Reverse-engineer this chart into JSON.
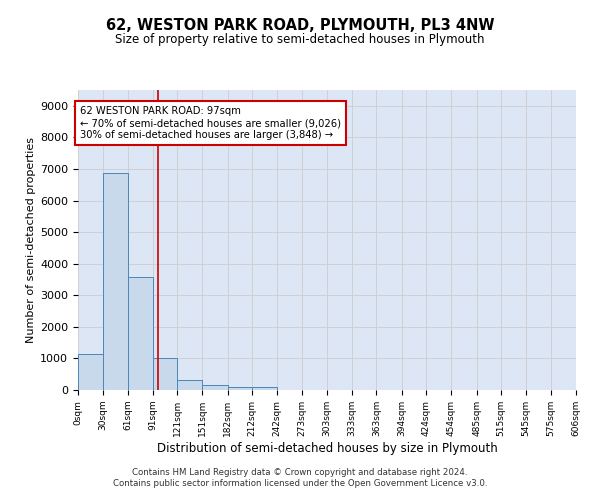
{
  "title": "62, WESTON PARK ROAD, PLYMOUTH, PL3 4NW",
  "subtitle": "Size of property relative to semi-detached houses in Plymouth",
  "xlabel": "Distribution of semi-detached houses by size in Plymouth",
  "ylabel": "Number of semi-detached properties",
  "footer_line1": "Contains HM Land Registry data © Crown copyright and database right 2024.",
  "footer_line2": "Contains public sector information licensed under the Open Government Licence v3.0.",
  "bar_values": [
    1130,
    6880,
    3570,
    1010,
    330,
    150,
    110,
    80,
    0,
    0,
    0,
    0,
    0,
    0,
    0,
    0,
    0,
    0,
    0,
    0
  ],
  "bin_edges": [
    0,
    30,
    61,
    91,
    121,
    151,
    182,
    212,
    242,
    273,
    303,
    333,
    363,
    394,
    424,
    454,
    485,
    515,
    545,
    575,
    606
  ],
  "bin_labels": [
    "0sqm",
    "30sqm",
    "61sqm",
    "91sqm",
    "121sqm",
    "151sqm",
    "182sqm",
    "212sqm",
    "242sqm",
    "273sqm",
    "303sqm",
    "333sqm",
    "363sqm",
    "394sqm",
    "424sqm",
    "454sqm",
    "485sqm",
    "515sqm",
    "545sqm",
    "575sqm",
    "606sqm"
  ],
  "property_size": 97,
  "annotation_text_line1": "62 WESTON PARK ROAD: 97sqm",
  "annotation_text_line2": "← 70% of semi-detached houses are smaller (9,026)",
  "annotation_text_line3": "30% of semi-detached houses are larger (3,848) →",
  "bar_color": "#c9d9ec",
  "bar_edge_color": "#4a86b8",
  "vline_color": "#cc0000",
  "annotation_box_color": "#cc0000",
  "grid_color": "#cccccc",
  "background_color": "#dce6f5",
  "ylim": [
    0,
    9500
  ],
  "yticks": [
    0,
    1000,
    2000,
    3000,
    4000,
    5000,
    6000,
    7000,
    8000,
    9000
  ]
}
